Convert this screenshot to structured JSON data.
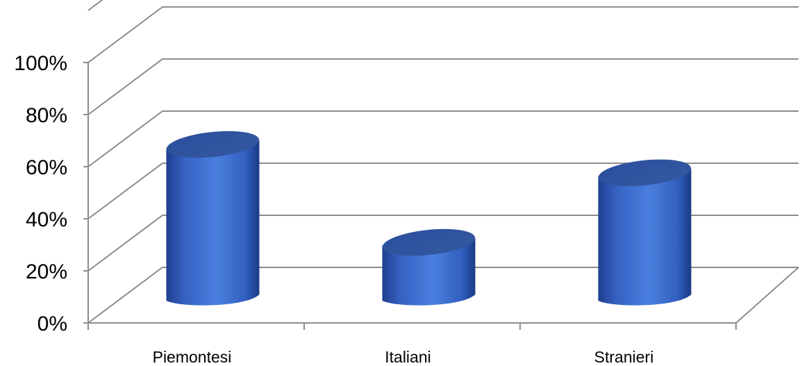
{
  "chart_data": {
    "type": "bar",
    "style": "3d-cylinder",
    "categories": [
      "Piemontesi",
      "Italiani",
      "Stranieri"
    ],
    "values": [
      62,
      24,
      51
    ],
    "ylim": [
      0,
      100
    ],
    "yticks": [
      "0%",
      "20%",
      "40%",
      "60%",
      "80%",
      "100%"
    ],
    "title": "",
    "xlabel": "",
    "ylabel": "",
    "grid": true,
    "legend": "none",
    "bar_color": "#3a64c3"
  }
}
